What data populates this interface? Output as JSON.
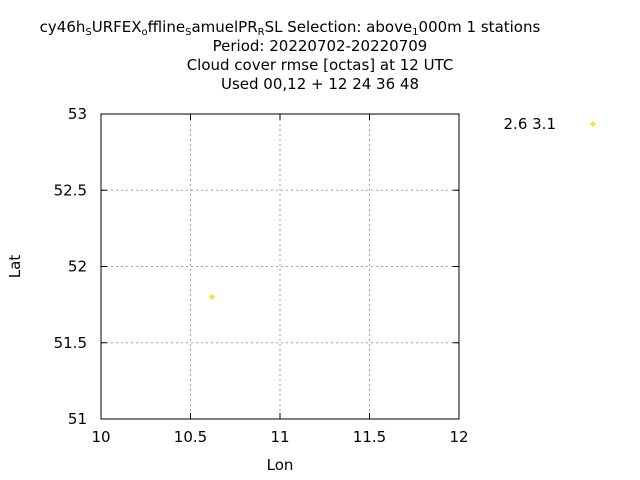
{
  "title": {
    "line1_parts": [
      {
        "text": "cy46h",
        "sub": false
      },
      {
        "text": "S",
        "sub": true
      },
      {
        "text": "URFEX",
        "sub": false
      },
      {
        "text": "o",
        "sub": true
      },
      {
        "text": "ffline",
        "sub": false
      },
      {
        "text": "S",
        "sub": true
      },
      {
        "text": "amuelPR",
        "sub": false
      },
      {
        "text": "R",
        "sub": true
      },
      {
        "text": "SL   Selection: above",
        "sub": false
      },
      {
        "text": "1",
        "sub": true
      },
      {
        "text": "000m      1 stations",
        "sub": false
      }
    ],
    "line2": "Period: 20220702-20220709",
    "line3": "Cloud cover rmse [octas] at  12 UTC",
    "line4": "Used  00,12  + 12 24 36 48"
  },
  "chart_data": {
    "type": "scatter",
    "xlabel": "Lon",
    "ylabel": "Lat",
    "xlim": [
      10,
      12
    ],
    "ylim": [
      51,
      53
    ],
    "xticks": [
      10,
      10.5,
      11,
      11.5,
      12
    ],
    "xtick_labels": [
      "10",
      "10.5",
      "11",
      "11.5",
      "12"
    ],
    "yticks": [
      51,
      51.5,
      52,
      52.5,
      53
    ],
    "ytick_labels": [
      "51",
      "51.5",
      "52",
      "52.5",
      "53"
    ],
    "grid": true,
    "legend": {
      "label": "2.6 3.1",
      "placement": "outside-top-right"
    },
    "series": [
      {
        "color": "#f0e040",
        "points": [
          {
            "x": 10.62,
            "y": 51.8
          }
        ]
      }
    ]
  }
}
